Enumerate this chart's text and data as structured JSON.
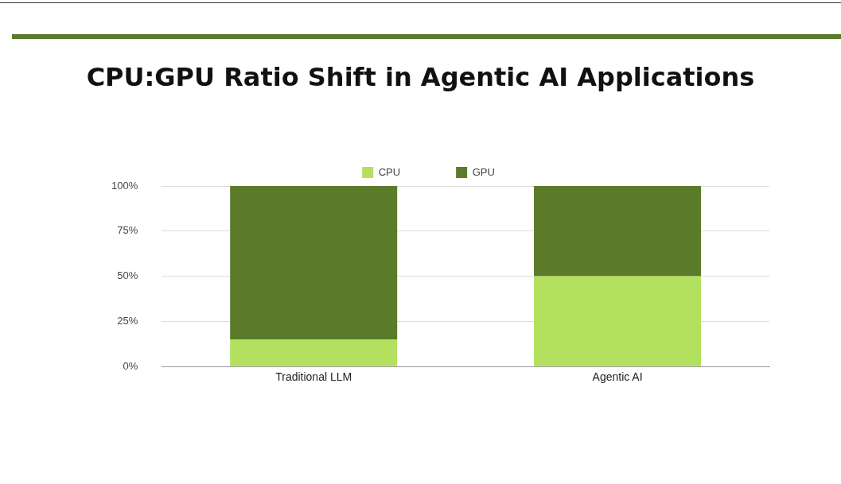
{
  "chart_data": {
    "type": "bar",
    "title": "CPU:GPU Ratio Shift in Agentic AI Applications",
    "stacked": true,
    "categories": [
      "Traditional LLM",
      "Agentic AI"
    ],
    "series": [
      {
        "name": "CPU",
        "color": "#b3e05e",
        "values": [
          15,
          50
        ]
      },
      {
        "name": "GPU",
        "color": "#5b7b2b",
        "values": [
          85,
          50
        ]
      }
    ],
    "ylim": [
      0,
      100
    ],
    "yticks": [
      {
        "value": 0,
        "label": "0%"
      },
      {
        "value": 25,
        "label": "25%"
      },
      {
        "value": 50,
        "label": "50%"
      },
      {
        "value": 75,
        "label": "75%"
      },
      {
        "value": 100,
        "label": "100%"
      }
    ],
    "grid": "y",
    "legend": "top"
  }
}
